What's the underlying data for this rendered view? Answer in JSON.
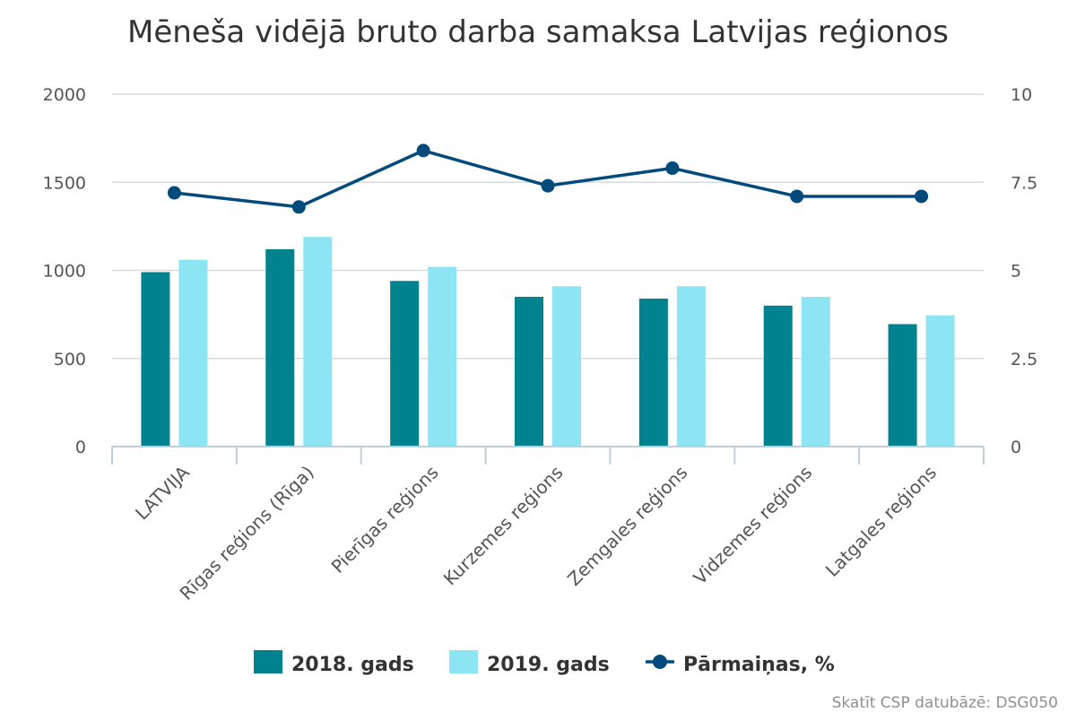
{
  "chart_data": {
    "type": "bar",
    "title": "Mēneša vidējā bruto darba samaksa Latvijas reģionos",
    "categories": [
      "LATVIJA",
      "Rīgas reģions (Rīga)",
      "Pierīgas reģions",
      "Kurzemes reģions",
      "Zemgales reģions",
      "Vidzemes reģions",
      "Latgales reģions"
    ],
    "series": [
      {
        "name": "2018. gads",
        "type": "bar",
        "axis": "left",
        "color": "#00838f",
        "values": [
          990,
          1120,
          940,
          850,
          840,
          800,
          695
        ]
      },
      {
        "name": "2019. gads",
        "type": "bar",
        "axis": "left",
        "color": "#8de4f2",
        "values": [
          1060,
          1190,
          1020,
          910,
          910,
          850,
          745
        ]
      },
      {
        "name": "Pārmaiņas, %",
        "type": "line",
        "axis": "right",
        "color": "#004b7c",
        "values": [
          7.2,
          6.8,
          8.4,
          7.4,
          7.9,
          7.1,
          7.1
        ]
      }
    ],
    "y_left": {
      "min": 0,
      "max": 2000,
      "ticks": [
        0,
        500,
        1000,
        1500,
        2000
      ],
      "tick_labels": [
        "0",
        "500",
        "1000",
        "1500",
        "2000"
      ]
    },
    "y_right": {
      "min": 0,
      "max": 10,
      "ticks": [
        0,
        2.5,
        5,
        7.5,
        10
      ],
      "tick_labels": [
        "0",
        "2.5",
        "5",
        "7.5",
        "10"
      ]
    },
    "grid": true,
    "legend_position": "bottom-center"
  },
  "credits": "Skatīt CSP datubāzē: DSG050"
}
